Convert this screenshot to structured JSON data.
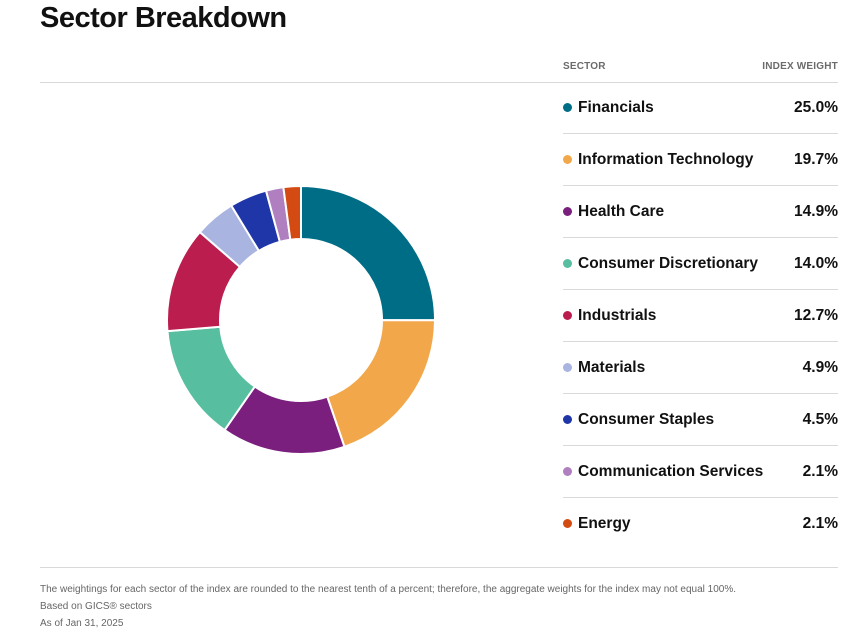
{
  "title": "Sector Breakdown",
  "table": {
    "col_sector": "SECTOR",
    "col_weight": "INDEX WEIGHT"
  },
  "chart_data": {
    "type": "pie",
    "variant": "donut",
    "categories": [
      "Financials",
      "Information Technology",
      "Health Care",
      "Consumer Discretionary",
      "Industrials",
      "Materials",
      "Consumer Staples",
      "Communication Services",
      "Energy"
    ],
    "values": [
      25.0,
      19.7,
      14.9,
      14.0,
      12.7,
      4.9,
      4.5,
      2.1,
      2.1
    ],
    "labels": [
      "25.0%",
      "19.7%",
      "14.9%",
      "14.0%",
      "12.7%",
      "4.9%",
      "4.5%",
      "2.1%",
      "2.1%"
    ],
    "colors": [
      "#006d86",
      "#f2a84a",
      "#7a1f7e",
      "#57bea0",
      "#bb1d4e",
      "#a9b5e0",
      "#1f36a8",
      "#b07fbf",
      "#d34a12"
    ]
  },
  "footer": {
    "note": "The weightings for each sector of the index are rounded to the nearest tenth of a percent; therefore, the aggregate weights for the index may not equal 100%.",
    "basis": "Based on GICS® sectors",
    "asof": "As of Jan 31, 2025"
  }
}
